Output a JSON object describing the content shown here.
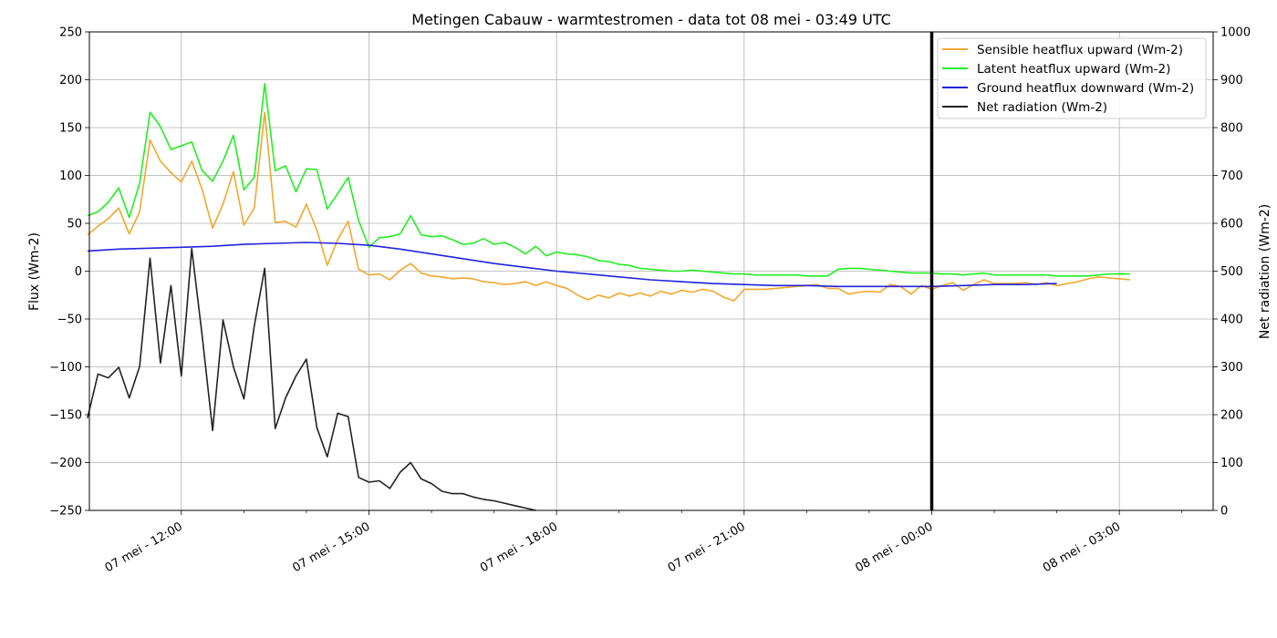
{
  "chart_data": {
    "type": "line",
    "title": "Metingen Cabauw - warmtestromen - data tot 08 mei - 03:49 UTC",
    "ylabel": "Flux (Wm-2)",
    "y2label": "Net radiation (Wm-2)",
    "xlabel": "",
    "ylim": [
      -250,
      250
    ],
    "y2lim": [
      0,
      1000
    ],
    "yticks": [
      -250,
      -200,
      -150,
      -100,
      -50,
      0,
      50,
      100,
      150,
      200,
      250
    ],
    "y2ticks": [
      0,
      100,
      200,
      300,
      400,
      500,
      600,
      700,
      800,
      900,
      1000
    ],
    "x_unit": "hours since 07 mei 00:00 UTC",
    "xlim": [
      10.53,
      28.5
    ],
    "xticks": [
      {
        "x": 12,
        "label": "07 mei - 12:00"
      },
      {
        "x": 15,
        "label": "07 mei - 15:00"
      },
      {
        "x": 18,
        "label": "07 mei - 18:00"
      },
      {
        "x": 21,
        "label": "07 mei - 21:00"
      },
      {
        "x": 24,
        "label": "08 mei - 00:00"
      },
      {
        "x": 27,
        "label": "08 mei - 03:00"
      }
    ],
    "minor_xticks": [
      13,
      14,
      16,
      17,
      19,
      20,
      22,
      23,
      25,
      26,
      28
    ],
    "vline": {
      "x": 24,
      "color": "#000000"
    },
    "grid": true,
    "legend_position": "top-right",
    "series": [
      {
        "name": "Sensible heatflux upward (Wm-2)",
        "color": "#F0A830",
        "axis": "left",
        "x0": 10.5,
        "dx": 0.1667,
        "values": [
          38,
          47,
          55,
          66,
          39,
          62,
          137,
          115,
          103,
          93,
          115,
          85,
          45,
          70,
          104,
          48,
          66,
          166,
          51,
          52,
          46,
          70,
          43,
          6,
          33,
          52,
          2,
          -4,
          -3,
          -9,
          1,
          8,
          -2,
          -5,
          -6,
          -8,
          -7,
          -8,
          -11,
          -12,
          -14,
          -13,
          -11,
          -15,
          -11,
          -15,
          -18,
          -25,
          -30,
          -25,
          -28,
          -23,
          -26,
          -23,
          -26,
          -21,
          -24,
          -20,
          -22,
          -19,
          -21,
          -27,
          -31,
          -19,
          -19,
          -19,
          -18,
          -17,
          -16,
          -15,
          -14,
          -18,
          -18,
          -24,
          -22,
          -21,
          -22,
          -14,
          -16,
          -24,
          -15,
          -19,
          -15,
          -12,
          -20,
          -14,
          -9,
          -13,
          -13,
          -13,
          -12,
          -14,
          -12,
          -15,
          -13,
          -11,
          -8,
          -6,
          -7,
          -8,
          -9
        ]
      },
      {
        "name": "Latent heatflux upward (Wm-2)",
        "color": "#22EE22",
        "axis": "left",
        "x0": 10.5,
        "dx": 0.1667,
        "values": [
          58,
          62,
          72,
          87,
          56,
          92,
          166,
          151,
          127,
          131,
          135,
          105,
          94,
          115,
          142,
          85,
          98,
          196,
          105,
          110,
          83,
          107,
          106,
          65,
          81,
          98,
          53,
          25,
          35,
          36,
          39,
          58,
          38,
          36,
          37,
          33,
          28,
          29,
          34,
          28,
          30,
          25,
          18,
          26,
          16,
          20,
          18,
          17,
          15,
          11,
          10,
          7,
          6,
          3,
          2,
          1,
          0,
          0,
          1,
          0,
          -1,
          -2,
          -3,
          -3,
          -4,
          -4,
          -4,
          -4,
          -4,
          -5,
          -5,
          -5,
          2,
          3,
          3,
          2,
          1,
          0,
          -1,
          -2,
          -2,
          -2,
          -3,
          -3,
          -4,
          -3,
          -2,
          -4,
          -4,
          -4,
          -4,
          -4,
          -4,
          -5,
          -5,
          -5,
          -5,
          -4,
          -3,
          -3,
          -3
        ]
      },
      {
        "name": "Ground heatflux downward (Wm-2)",
        "color": "#2222DD",
        "axis": "left",
        "x0": 10.5,
        "dx": 0.5,
        "values": [
          21,
          23,
          24,
          25,
          26,
          28,
          29,
          30,
          29,
          27,
          23,
          18,
          13,
          8,
          4,
          0,
          -3,
          -6,
          -9,
          -11,
          -13,
          -14,
          -15,
          -15,
          -16,
          -16,
          -16,
          -16,
          -15,
          -14,
          -14,
          -13
        ]
      },
      {
        "name": "Net radiation (Wm-2)",
        "color": "#222222",
        "axis": "right",
        "x0": 10.5,
        "dx": 0.1667,
        "values": [
          193,
          285,
          277,
          299,
          235,
          301,
          527,
          308,
          470,
          281,
          547,
          364,
          167,
          398,
          300,
          233,
          386,
          506,
          171,
          235,
          281,
          316,
          173,
          112,
          203,
          196,
          69,
          59,
          62,
          46,
          80,
          100,
          66,
          56,
          40,
          35,
          35,
          28,
          23,
          20,
          15,
          10,
          5,
          0
        ]
      }
    ]
  }
}
